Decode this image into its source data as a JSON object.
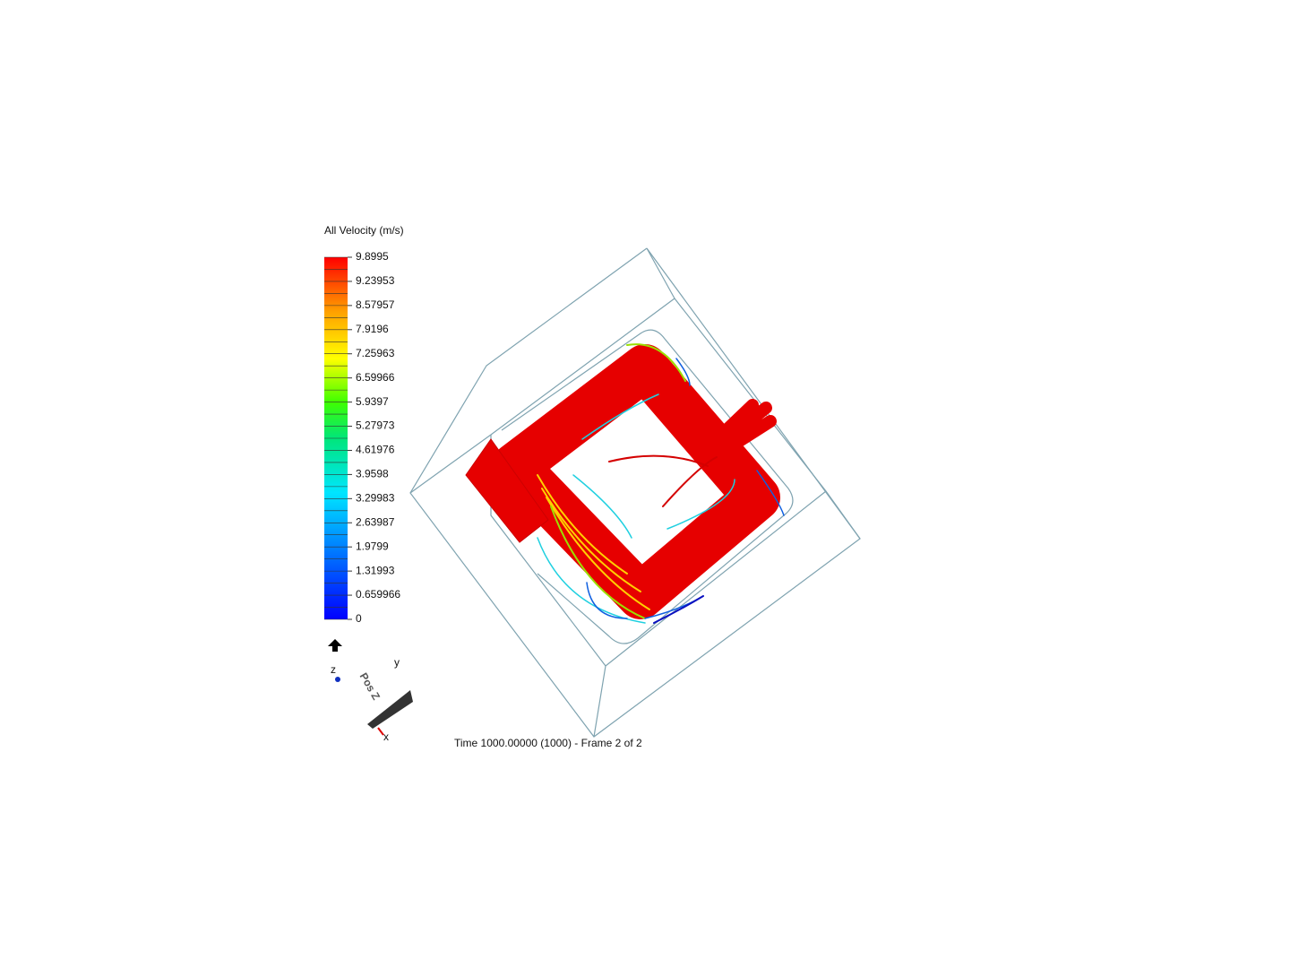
{
  "legend": {
    "title": "All Velocity (m/s)",
    "labels": [
      "9.8995",
      "9.23953",
      "8.57957",
      "7.9196",
      "7.25963",
      "6.59966",
      "5.9397",
      "5.27973",
      "4.61976",
      "3.9598",
      "3.29983",
      "2.63987",
      "1.9799",
      "1.31993",
      "0.659966",
      "0"
    ]
  },
  "triad": {
    "x": "x",
    "y": "y",
    "z": "z",
    "view": "Pos Z"
  },
  "status": "Time 1000.00000 (1000) - Frame 2 of 2"
}
